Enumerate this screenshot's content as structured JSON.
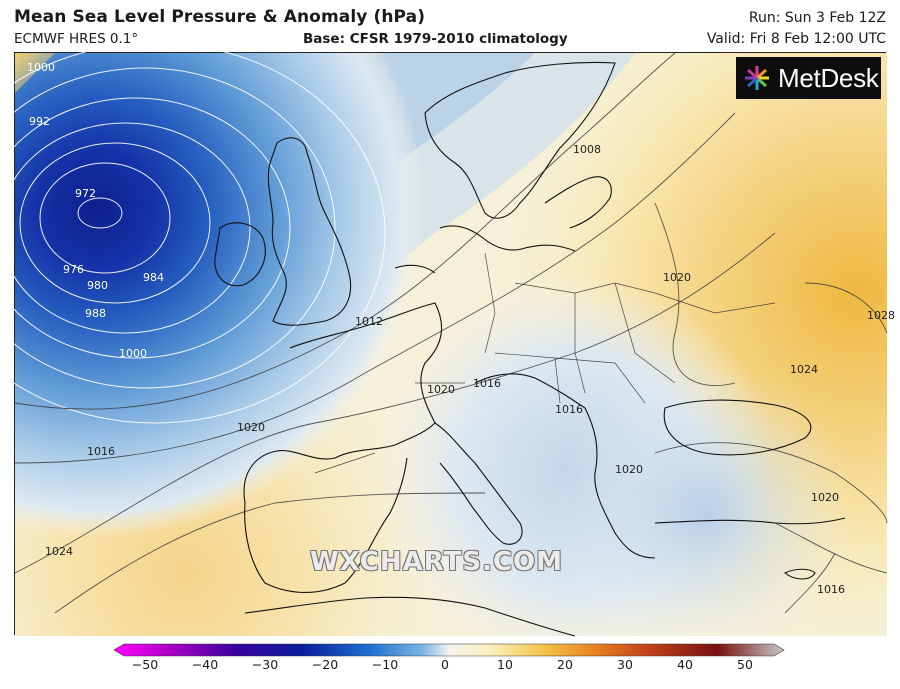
{
  "header": {
    "title": "Mean Sea Level Pressure & Anomaly (hPa)",
    "model": "ECMWF HRES 0.1°",
    "base": "Base: CFSR 1979-2010 climatology",
    "run": "Run: Sun 3 Feb 12Z",
    "valid": "Valid: Fri 8 Feb 12:00 UTC"
  },
  "logo": {
    "text": "MetDesk"
  },
  "watermark": "WXCHARTS.COM",
  "isobar_labels": [
    "1000",
    "992",
    "972",
    "976",
    "980",
    "984",
    "988",
    "1000",
    "1008",
    "1016",
    "1012",
    "1016",
    "1020",
    "1020",
    "1024",
    "1020",
    "1024",
    "1028",
    "1020",
    "1016",
    "1016",
    "1020"
  ],
  "colorbar": {
    "ticks": [
      "−50",
      "−40",
      "−30",
      "−20",
      "−10",
      "0",
      "10",
      "20",
      "30",
      "40",
      "50"
    ],
    "colors": [
      "#ff00ff",
      "#b000c8",
      "#3a00a0",
      "#0a1e9c",
      "#1e6ed0",
      "#7ab4e4",
      "#e8f0f6",
      "#fbf2c8",
      "#f2c44a",
      "#e8801e",
      "#c0401c",
      "#781010",
      "#c8c8c8"
    ]
  },
  "colors": {
    "deep_low": "#0e1f8c",
    "mid_low": "#2f6fc7",
    "light_low": "#bcd6ec",
    "neutral": "#f6f3e6",
    "light_high": "#f8e6a8",
    "high": "#efc45c"
  }
}
